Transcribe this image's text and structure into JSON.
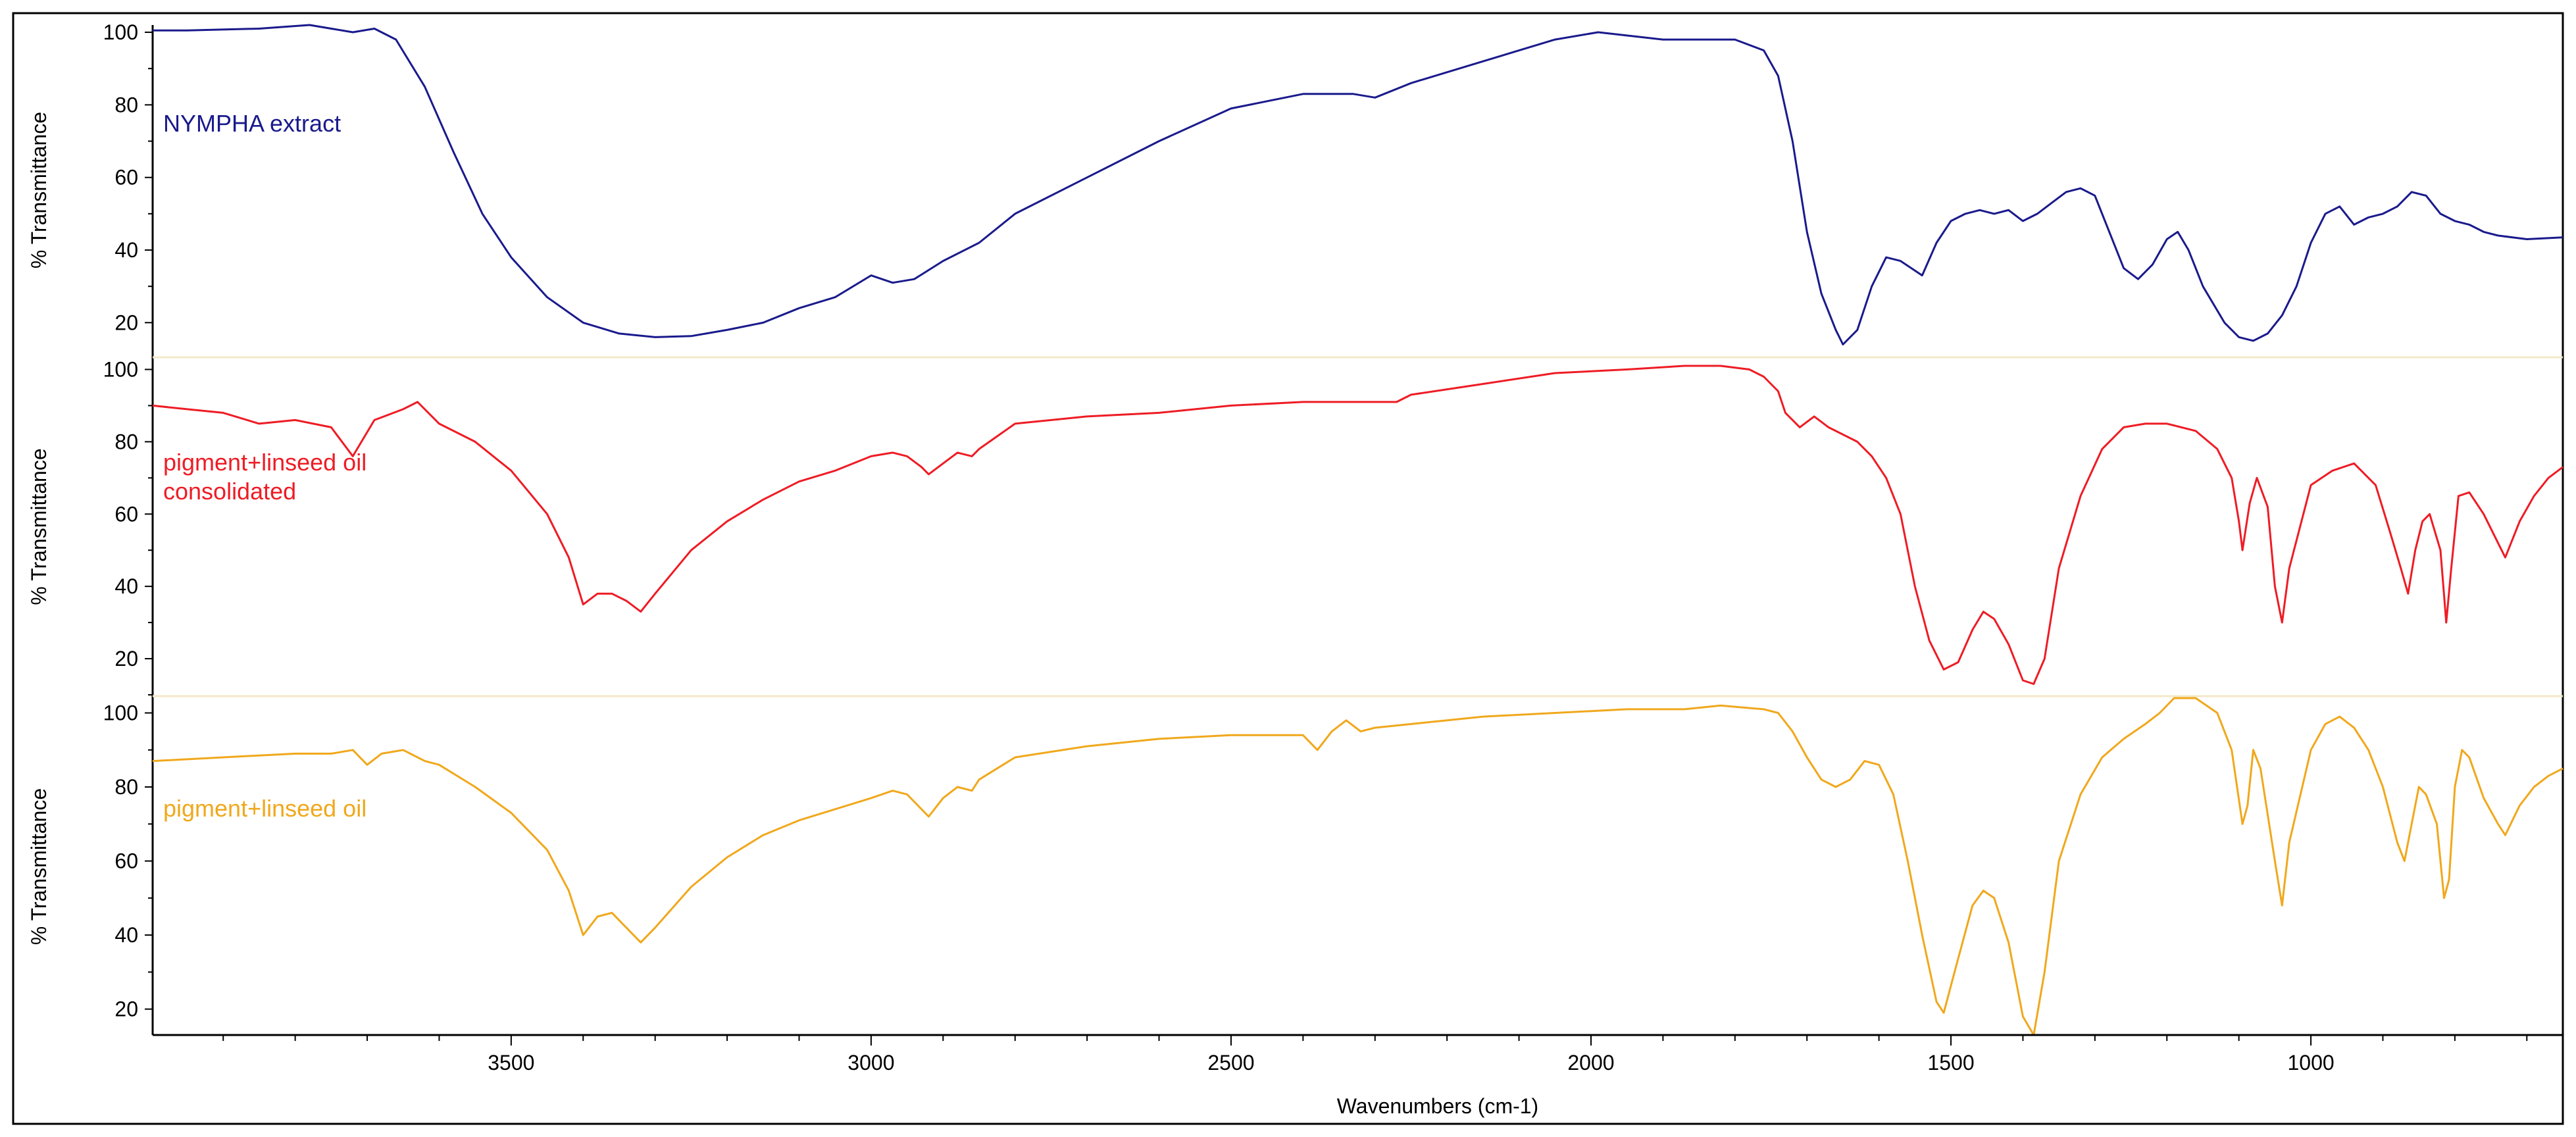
{
  "chart_data": {
    "type": "line",
    "xlabel": "Wavenumbers (cm-1)",
    "x_reversed": true,
    "xlim": [
      3998,
      650
    ],
    "x_ticks": [
      3500,
      3000,
      2500,
      2000,
      1500,
      1000
    ],
    "panels": [
      {
        "series_name": "NYMPHA extract",
        "annotation_lines": [
          "NYMPHA extract"
        ],
        "color": "#1a1a8c",
        "ylabel": "% Transmittance",
        "ylim": [
          11,
          102
        ],
        "y_ticks": [
          20,
          40,
          60,
          80,
          100
        ],
        "points": [
          [
            3998,
            100.5
          ],
          [
            3950,
            100.5
          ],
          [
            3850,
            101
          ],
          [
            3780,
            102
          ],
          [
            3720,
            100
          ],
          [
            3690,
            101
          ],
          [
            3660,
            98
          ],
          [
            3620,
            85
          ],
          [
            3580,
            67
          ],
          [
            3540,
            50
          ],
          [
            3500,
            38
          ],
          [
            3450,
            27
          ],
          [
            3400,
            20
          ],
          [
            3350,
            17
          ],
          [
            3300,
            16
          ],
          [
            3250,
            16.3
          ],
          [
            3200,
            18
          ],
          [
            3150,
            20
          ],
          [
            3100,
            24
          ],
          [
            3050,
            27
          ],
          [
            3000,
            33
          ],
          [
            2970,
            31
          ],
          [
            2940,
            32
          ],
          [
            2900,
            37
          ],
          [
            2850,
            42
          ],
          [
            2800,
            50
          ],
          [
            2700,
            60
          ],
          [
            2600,
            70
          ],
          [
            2500,
            79
          ],
          [
            2400,
            83
          ],
          [
            2330,
            83
          ],
          [
            2300,
            82
          ],
          [
            2250,
            86
          ],
          [
            2150,
            92
          ],
          [
            2050,
            98
          ],
          [
            1990,
            100
          ],
          [
            1900,
            98
          ],
          [
            1800,
            98
          ],
          [
            1760,
            95
          ],
          [
            1740,
            88
          ],
          [
            1720,
            70
          ],
          [
            1700,
            45
          ],
          [
            1680,
            28
          ],
          [
            1660,
            18
          ],
          [
            1650,
            14
          ],
          [
            1630,
            18
          ],
          [
            1610,
            30
          ],
          [
            1590,
            38
          ],
          [
            1570,
            37
          ],
          [
            1555,
            35
          ],
          [
            1540,
            33
          ],
          [
            1520,
            42
          ],
          [
            1500,
            48
          ],
          [
            1480,
            50
          ],
          [
            1460,
            51
          ],
          [
            1440,
            50
          ],
          [
            1420,
            51
          ],
          [
            1400,
            48
          ],
          [
            1380,
            50
          ],
          [
            1360,
            53
          ],
          [
            1340,
            56
          ],
          [
            1320,
            57
          ],
          [
            1300,
            55
          ],
          [
            1280,
            45
          ],
          [
            1260,
            35
          ],
          [
            1240,
            32
          ],
          [
            1220,
            36
          ],
          [
            1200,
            43
          ],
          [
            1185,
            45
          ],
          [
            1170,
            40
          ],
          [
            1150,
            30
          ],
          [
            1120,
            20
          ],
          [
            1100,
            16
          ],
          [
            1080,
            15
          ],
          [
            1060,
            17
          ],
          [
            1040,
            22
          ],
          [
            1020,
            30
          ],
          [
            1000,
            42
          ],
          [
            980,
            50
          ],
          [
            960,
            52
          ],
          [
            940,
            47
          ],
          [
            920,
            49
          ],
          [
            900,
            50
          ],
          [
            880,
            52
          ],
          [
            860,
            56
          ],
          [
            840,
            55
          ],
          [
            820,
            50
          ],
          [
            800,
            48
          ],
          [
            780,
            47
          ],
          [
            760,
            45
          ],
          [
            740,
            44
          ],
          [
            700,
            43
          ],
          [
            650,
            43.5
          ]
        ]
      },
      {
        "series_name": "pigment+linseed oil consolidated",
        "annotation_lines": [
          "pigment+linseed oil",
          "consolidated"
        ],
        "color": "#ee1c25",
        "ylabel": "% Transmittance",
        "ylim": [
          10,
          103
        ],
        "y_ticks": [
          20,
          40,
          60,
          80,
          100
        ],
        "points": [
          [
            3998,
            90
          ],
          [
            3950,
            89
          ],
          [
            3900,
            88
          ],
          [
            3850,
            85
          ],
          [
            3800,
            86
          ],
          [
            3750,
            84
          ],
          [
            3720,
            76
          ],
          [
            3690,
            86
          ],
          [
            3650,
            89
          ],
          [
            3630,
            91
          ],
          [
            3600,
            85
          ],
          [
            3550,
            80
          ],
          [
            3500,
            72
          ],
          [
            3450,
            60
          ],
          [
            3420,
            48
          ],
          [
            3400,
            35
          ],
          [
            3380,
            38
          ],
          [
            3360,
            38
          ],
          [
            3340,
            36
          ],
          [
            3320,
            33
          ],
          [
            3300,
            38
          ],
          [
            3250,
            50
          ],
          [
            3200,
            58
          ],
          [
            3150,
            64
          ],
          [
            3100,
            69
          ],
          [
            3050,
            72
          ],
          [
            3000,
            76
          ],
          [
            2970,
            77
          ],
          [
            2950,
            76
          ],
          [
            2930,
            73
          ],
          [
            2920,
            71
          ],
          [
            2900,
            74
          ],
          [
            2880,
            77
          ],
          [
            2860,
            76
          ],
          [
            2850,
            78
          ],
          [
            2800,
            85
          ],
          [
            2700,
            87
          ],
          [
            2600,
            88
          ],
          [
            2500,
            90
          ],
          [
            2400,
            91
          ],
          [
            2300,
            91
          ],
          [
            2270,
            91
          ],
          [
            2250,
            93
          ],
          [
            2150,
            96
          ],
          [
            2050,
            99
          ],
          [
            1950,
            100
          ],
          [
            1870,
            101
          ],
          [
            1820,
            101
          ],
          [
            1780,
            100
          ],
          [
            1760,
            98
          ],
          [
            1740,
            94
          ],
          [
            1730,
            88
          ],
          [
            1710,
            84
          ],
          [
            1690,
            87
          ],
          [
            1670,
            84
          ],
          [
            1650,
            82
          ],
          [
            1630,
            80
          ],
          [
            1610,
            76
          ],
          [
            1590,
            70
          ],
          [
            1570,
            60
          ],
          [
            1550,
            40
          ],
          [
            1530,
            25
          ],
          [
            1510,
            17
          ],
          [
            1490,
            19
          ],
          [
            1470,
            28
          ],
          [
            1455,
            33
          ],
          [
            1440,
            31
          ],
          [
            1420,
            24
          ],
          [
            1400,
            14
          ],
          [
            1385,
            13
          ],
          [
            1370,
            20
          ],
          [
            1350,
            45
          ],
          [
            1320,
            65
          ],
          [
            1290,
            78
          ],
          [
            1260,
            84
          ],
          [
            1230,
            85
          ],
          [
            1200,
            85
          ],
          [
            1160,
            83
          ],
          [
            1130,
            78
          ],
          [
            1110,
            70
          ],
          [
            1100,
            58
          ],
          [
            1095,
            50
          ],
          [
            1085,
            63
          ],
          [
            1075,
            70
          ],
          [
            1060,
            62
          ],
          [
            1050,
            40
          ],
          [
            1040,
            30
          ],
          [
            1030,
            45
          ],
          [
            1000,
            68
          ],
          [
            970,
            72
          ],
          [
            940,
            74
          ],
          [
            910,
            68
          ],
          [
            890,
            55
          ],
          [
            875,
            45
          ],
          [
            865,
            38
          ],
          [
            855,
            50
          ],
          [
            845,
            58
          ],
          [
            835,
            60
          ],
          [
            820,
            50
          ],
          [
            812,
            30
          ],
          [
            805,
            45
          ],
          [
            795,
            65
          ],
          [
            780,
            66
          ],
          [
            760,
            60
          ],
          [
            740,
            52
          ],
          [
            730,
            48
          ],
          [
            710,
            58
          ],
          [
            690,
            65
          ],
          [
            670,
            70
          ],
          [
            650,
            73
          ]
        ]
      },
      {
        "series_name": "pigment+linseed oil",
        "annotation_lines": [
          "pigment+linseed oil"
        ],
        "color": "#f0a81c",
        "ylabel": "% Transmittance",
        "ylim": [
          13,
          104
        ],
        "y_ticks": [
          20,
          40,
          60,
          80,
          100
        ],
        "points": [
          [
            3998,
            87
          ],
          [
            3900,
            88
          ],
          [
            3800,
            89
          ],
          [
            3750,
            89
          ],
          [
            3720,
            90
          ],
          [
            3700,
            86
          ],
          [
            3680,
            89
          ],
          [
            3650,
            90
          ],
          [
            3620,
            87
          ],
          [
            3600,
            86
          ],
          [
            3550,
            80
          ],
          [
            3500,
            73
          ],
          [
            3450,
            63
          ],
          [
            3420,
            52
          ],
          [
            3400,
            40
          ],
          [
            3380,
            45
          ],
          [
            3360,
            46
          ],
          [
            3340,
            42
          ],
          [
            3320,
            38
          ],
          [
            3300,
            42
          ],
          [
            3250,
            53
          ],
          [
            3200,
            61
          ],
          [
            3150,
            67
          ],
          [
            3100,
            71
          ],
          [
            3050,
            74
          ],
          [
            3000,
            77
          ],
          [
            2970,
            79
          ],
          [
            2950,
            78
          ],
          [
            2930,
            74
          ],
          [
            2920,
            72
          ],
          [
            2900,
            77
          ],
          [
            2880,
            80
          ],
          [
            2860,
            79
          ],
          [
            2850,
            82
          ],
          [
            2800,
            88
          ],
          [
            2700,
            91
          ],
          [
            2600,
            93
          ],
          [
            2500,
            94
          ],
          [
            2400,
            94
          ],
          [
            2380,
            90
          ],
          [
            2360,
            95
          ],
          [
            2340,
            98
          ],
          [
            2320,
            95
          ],
          [
            2300,
            96
          ],
          [
            2250,
            97
          ],
          [
            2150,
            99
          ],
          [
            2050,
            100
          ],
          [
            1950,
            101
          ],
          [
            1870,
            101
          ],
          [
            1820,
            102
          ],
          [
            1760,
            101
          ],
          [
            1740,
            100
          ],
          [
            1720,
            95
          ],
          [
            1700,
            88
          ],
          [
            1680,
            82
          ],
          [
            1660,
            80
          ],
          [
            1640,
            82
          ],
          [
            1620,
            87
          ],
          [
            1600,
            86
          ],
          [
            1580,
            78
          ],
          [
            1560,
            60
          ],
          [
            1540,
            40
          ],
          [
            1520,
            22
          ],
          [
            1510,
            19
          ],
          [
            1495,
            30
          ],
          [
            1470,
            48
          ],
          [
            1455,
            52
          ],
          [
            1440,
            50
          ],
          [
            1420,
            38
          ],
          [
            1400,
            18
          ],
          [
            1385,
            13
          ],
          [
            1370,
            30
          ],
          [
            1350,
            60
          ],
          [
            1320,
            78
          ],
          [
            1290,
            88
          ],
          [
            1260,
            93
          ],
          [
            1230,
            97
          ],
          [
            1210,
            100
          ],
          [
            1190,
            104
          ],
          [
            1160,
            104
          ],
          [
            1130,
            100
          ],
          [
            1110,
            90
          ],
          [
            1095,
            70
          ],
          [
            1088,
            75
          ],
          [
            1080,
            90
          ],
          [
            1070,
            85
          ],
          [
            1050,
            60
          ],
          [
            1040,
            48
          ],
          [
            1030,
            65
          ],
          [
            1000,
            90
          ],
          [
            980,
            97
          ],
          [
            960,
            99
          ],
          [
            940,
            96
          ],
          [
            920,
            90
          ],
          [
            900,
            80
          ],
          [
            880,
            65
          ],
          [
            870,
            60
          ],
          [
            860,
            70
          ],
          [
            850,
            80
          ],
          [
            840,
            78
          ],
          [
            825,
            70
          ],
          [
            815,
            50
          ],
          [
            808,
            55
          ],
          [
            800,
            80
          ],
          [
            790,
            90
          ],
          [
            780,
            88
          ],
          [
            760,
            77
          ],
          [
            740,
            70
          ],
          [
            730,
            67
          ],
          [
            710,
            75
          ],
          [
            690,
            80
          ],
          [
            670,
            83
          ],
          [
            650,
            85
          ]
        ]
      }
    ]
  }
}
